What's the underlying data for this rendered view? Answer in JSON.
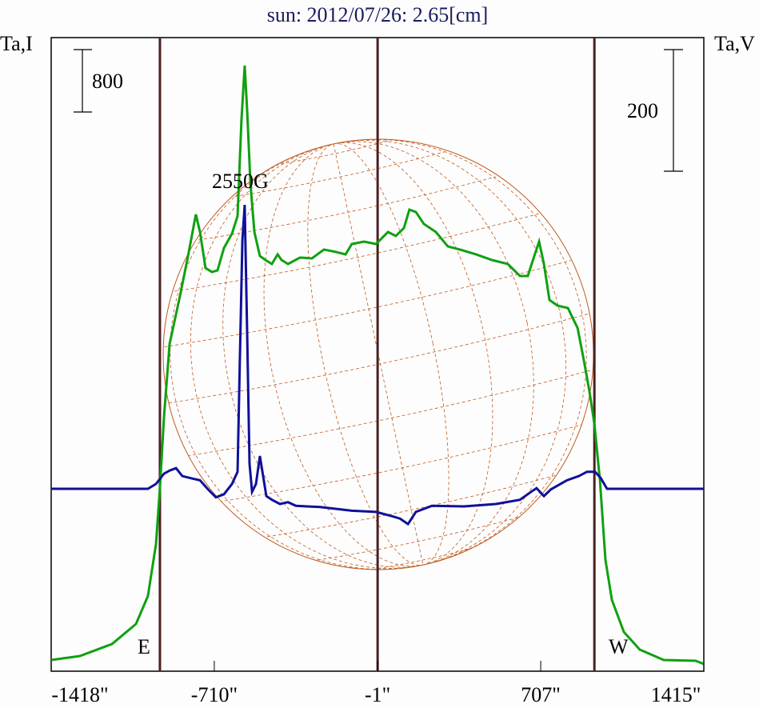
{
  "chart_data": {
    "type": "line",
    "title": "sun: 2012/07/26: 2.65[cm]",
    "ylabel_left": "Ta,I",
    "ylabel_right": "Ta,V",
    "scale_bar_left": "800",
    "scale_bar_right": "200",
    "annotation": "2550G",
    "limb_labels": {
      "east": "E",
      "west": "W"
    },
    "x_ticks": [
      "-1418\"",
      "-710\"",
      "-1\"",
      "707\"",
      "1415\""
    ],
    "x_tick_values": [
      -1418,
      -710,
      -1,
      707,
      1415
    ],
    "xlim": [
      -1418,
      1415
    ],
    "limb_lines": [
      -946,
      -1,
      940
    ],
    "colors": {
      "I": "#10a010",
      "V": "#10109a",
      "limb": "#4a2020",
      "globe": "#c05a20"
    },
    "series": [
      {
        "name": "I",
        "x": [
          -1418,
          -1293,
          -1154,
          -1050,
          -998,
          -963,
          -946,
          -928,
          -904,
          -859,
          -824,
          -790,
          -772,
          -748,
          -720,
          -696,
          -668,
          -633,
          -609,
          -592,
          -578,
          -567,
          -553,
          -536,
          -512,
          -488,
          -460,
          -435,
          -418,
          -390,
          -338,
          -286,
          -234,
          -182,
          -140,
          -113,
          -60,
          -8,
          44,
          78,
          113,
          137,
          165,
          200,
          252,
          304,
          356,
          426,
          495,
          564,
          617,
          651,
          679,
          700,
          721,
          745,
          780,
          825,
          867,
          894,
          919,
          940,
          964,
          988,
          1016,
          1068,
          1137,
          1241,
          1380,
          1415
        ],
        "values": [
          0,
          51,
          205,
          462,
          821,
          1488,
          2206,
          3129,
          4053,
          4668,
          5181,
          5715,
          5489,
          5027,
          4976,
          4997,
          5284,
          5469,
          5694,
          6926,
          7623,
          7028,
          6105,
          5489,
          5181,
          5130,
          5079,
          5202,
          5130,
          5079,
          5161,
          5151,
          5264,
          5233,
          5202,
          5335,
          5366,
          5335,
          5489,
          5438,
          5540,
          5776,
          5746,
          5592,
          5489,
          5304,
          5264,
          5202,
          5130,
          5079,
          4925,
          4925,
          5181,
          5366,
          5079,
          4617,
          4545,
          4514,
          4258,
          3848,
          3437,
          3027,
          2308,
          1283,
          770,
          359,
          133,
          0,
          -10,
          -51
        ]
      },
      {
        "name": "V",
        "x": [
          -1418,
          -998,
          -963,
          -928,
          -904,
          -876,
          -849,
          -807,
          -772,
          -737,
          -703,
          -668,
          -633,
          -609,
          -599,
          -588,
          -578,
          -567,
          -557,
          -546,
          -529,
          -512,
          -501,
          -484,
          -460,
          -425,
          -390,
          -356,
          -251,
          -113,
          -8,
          61,
          96,
          131,
          165,
          235,
          374,
          513,
          617,
          665,
          689,
          721,
          751,
          821,
          873,
          908,
          943,
          967,
          995,
          1415
        ],
        "values": [
          0,
          0,
          8,
          25,
          30,
          34,
          21,
          17,
          14,
          -1,
          -14,
          -9,
          8,
          28,
          212,
          409,
          467,
          250,
          41,
          -5,
          8,
          54,
          28,
          -12,
          -18,
          -25,
          -22,
          -28,
          -30,
          -36,
          -38,
          -45,
          -49,
          -58,
          -38,
          -28,
          -29,
          -25,
          -18,
          -5,
          1,
          -12,
          -1,
          14,
          21,
          28,
          28,
          18,
          0,
          0
        ]
      }
    ]
  }
}
